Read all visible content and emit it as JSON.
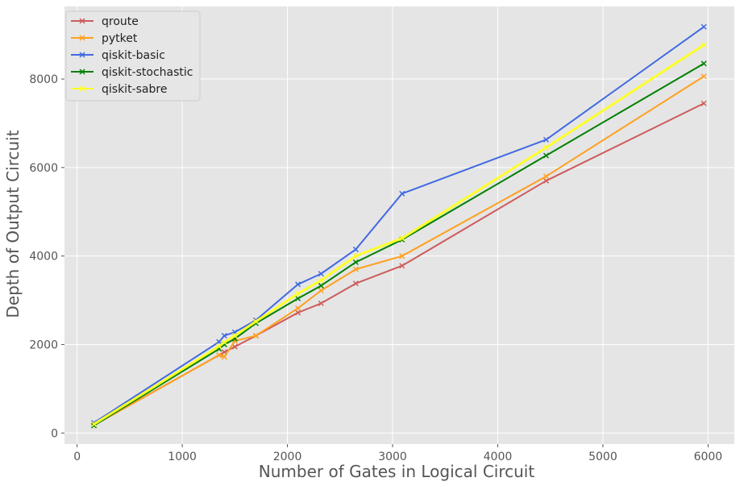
{
  "chart_data": {
    "type": "line",
    "title": "",
    "xlabel": "Number of Gates in Logical Circuit",
    "ylabel": "Depth of Output Circuit",
    "xlim": [
      -120,
      6250
    ],
    "ylim": [
      -250,
      9640
    ],
    "xticks": [
      0,
      1000,
      2000,
      3000,
      4000,
      5000,
      6000
    ],
    "yticks": [
      0,
      2000,
      4000,
      6000,
      8000
    ],
    "grid": true,
    "legend": "top-left",
    "series": [
      {
        "name": "qroute",
        "color": "#cd5c5c",
        "x": [
          160,
          1350,
          1400,
          1500,
          1700,
          2100,
          2320,
          2650,
          3090,
          4460,
          5960
        ],
        "y": [
          180,
          1760,
          1830,
          1950,
          2200,
          2720,
          2930,
          3380,
          3780,
          5700,
          7450
        ]
      },
      {
        "name": "pytket",
        "color": "#ffa01e",
        "x": [
          160,
          1350,
          1400,
          1500,
          1700,
          2100,
          2320,
          2650,
          3090,
          4460,
          5960
        ],
        "y": [
          175,
          1760,
          1720,
          2080,
          2200,
          2820,
          3220,
          3700,
          4000,
          5800,
          8060
        ]
      },
      {
        "name": "qiskit-basic",
        "color": "#4169e1",
        "x": [
          160,
          1350,
          1400,
          1500,
          1700,
          2100,
          2320,
          2650,
          3090,
          4460,
          5960
        ],
        "y": [
          230,
          2060,
          2200,
          2280,
          2550,
          3360,
          3600,
          4150,
          5410,
          6630,
          9180
        ]
      },
      {
        "name": "qiskit-stochastic",
        "color": "#008000",
        "x": [
          160,
          1350,
          1400,
          1500,
          1700,
          2100,
          2320,
          2650,
          3090,
          4460,
          5960
        ],
        "y": [
          170,
          1900,
          2000,
          2130,
          2480,
          3040,
          3330,
          3860,
          4370,
          6270,
          8350
        ]
      },
      {
        "name": "qiskit-sabre",
        "color": "#ffff2a",
        "x": [
          160,
          1350,
          1400,
          1500,
          1700,
          2100,
          2320,
          2650,
          3090,
          4460,
          5960
        ],
        "y": [
          200,
          1960,
          2050,
          2200,
          2520,
          3150,
          3450,
          4000,
          4400,
          6450,
          8770
        ]
      }
    ]
  }
}
